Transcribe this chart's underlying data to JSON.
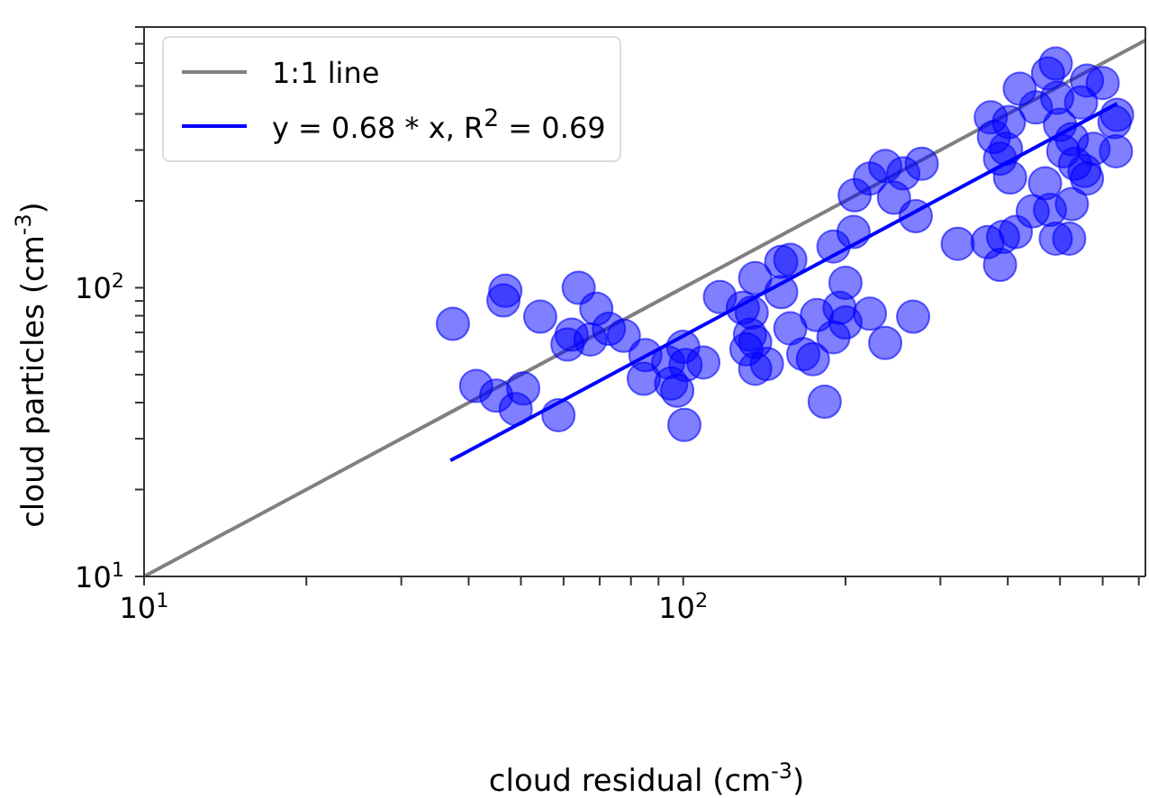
{
  "chart_data": {
    "type": "scatter",
    "xlabel": "cloud residual (cm$^{-3}$)",
    "ylabel": "cloud particles (cm$^{-3}$)",
    "log": "xy",
    "legend": "top left",
    "xlim": [
      10,
      720
    ],
    "ylim": [
      10,
      800
    ],
    "xticks": [
      {
        "value": 10,
        "label": "10$^{1}$"
      },
      {
        "value": 20,
        "label": null
      },
      {
        "value": 30,
        "label": null
      },
      {
        "value": 40,
        "label": null
      },
      {
        "value": 50,
        "label": null
      },
      {
        "value": 60,
        "label": null
      },
      {
        "value": 70,
        "label": null
      },
      {
        "value": 80,
        "label": null
      },
      {
        "value": 90,
        "label": null
      },
      {
        "value": 100,
        "label": "10$^{2}$"
      },
      {
        "value": 200,
        "label": null
      },
      {
        "value": 300,
        "label": null
      },
      {
        "value": 400,
        "label": null
      },
      {
        "value": 500,
        "label": null
      },
      {
        "value": 600,
        "label": null
      },
      {
        "value": 700,
        "label": null
      }
    ],
    "yticks": [
      {
        "value": 10,
        "label": "10$^{1}$"
      },
      {
        "value": 20,
        "label": null
      },
      {
        "value": 30,
        "label": null
      },
      {
        "value": 40,
        "label": null
      },
      {
        "value": 50,
        "label": null
      },
      {
        "value": 60,
        "label": null
      },
      {
        "value": 70,
        "label": null
      },
      {
        "value": 80,
        "label": null
      },
      {
        "value": 90,
        "label": null
      },
      {
        "value": 100,
        "label": "10$^{2}$"
      },
      {
        "value": 200,
        "label": null
      },
      {
        "value": 300,
        "label": null
      },
      {
        "value": 400,
        "label": null
      },
      {
        "value": 500,
        "label": null
      },
      {
        "value": 600,
        "label": null
      },
      {
        "value": 700,
        "label": null
      },
      {
        "value": 800,
        "label": null
      }
    ],
    "series": [
      {
        "marker": "circle",
        "color": "#0000ff",
        "x": [
          37.4,
          46.8,
          46.4,
          54.3,
          64,
          69,
          62.1,
          61,
          67.3,
          72.8,
          77.6,
          41.3,
          45,
          50.5,
          48.9,
          58.7,
          85.1,
          84.5,
          93.8,
          100,
          101,
          109,
          95,
          97.5,
          100.5,
          117,
          129,
          134,
          136,
          152,
          133,
          136,
          131,
          136,
          143,
          158,
          167,
          174,
          183,
          152,
          158,
          177,
          190,
          207,
          200,
          195,
          200,
          190,
          222,
          267,
          237,
          277,
          256,
          237,
          222,
          208,
          246,
          270,
          491,
          475,
          421,
          561,
          600,
          451,
          494,
          547,
          372,
          402,
          377,
          500,
          526,
          638,
          631,
          397,
          387,
          507,
          577,
          635,
          533,
          555,
          561,
          404,
          469,
          526,
          445,
          479,
          491,
          520,
          414,
          392,
          367,
          323,
          387
        ],
        "values": [
          75,
          97.7,
          90.4,
          79.4,
          100,
          84.6,
          68.8,
          63.6,
          66.2,
          72.1,
          68.2,
          45.7,
          42.3,
          44.8,
          38,
          36.2,
          58.4,
          48.4,
          55.1,
          62.4,
          54,
          55.1,
          46.6,
          44,
          33.5,
          92.9,
          85.2,
          82,
          108,
          96.6,
          68.8,
          64.9,
          61.2,
          52.4,
          54.5,
          72.3,
          58.9,
          56.6,
          40.3,
          123,
          125,
          80.4,
          139,
          156,
          104,
          85.2,
          75.8,
          67.4,
          81.3,
          79.4,
          64.4,
          269,
          249,
          264,
          239,
          209,
          205,
          177,
          598,
          553,
          489,
          522,
          512,
          421,
          455,
          438,
          389,
          375,
          333,
          367,
          327,
          397,
          375,
          303,
          280,
          297,
          303,
          297,
          269,
          254,
          239,
          241,
          230,
          195,
          184,
          186,
          148,
          148,
          156,
          150,
          144,
          142,
          120
        ]
      },
      {
        "type": "line",
        "name": "1:1 line",
        "color": "#808080",
        "x": [
          10,
          720
        ],
        "values": [
          10,
          720
        ]
      },
      {
        "type": "line",
        "name": "y = 0.68 * x, R$^{2}$ = 0.69",
        "color": "#0000ff",
        "x": [
          37,
          638
        ],
        "values": [
          25.2,
          434
        ]
      }
    ]
  }
}
